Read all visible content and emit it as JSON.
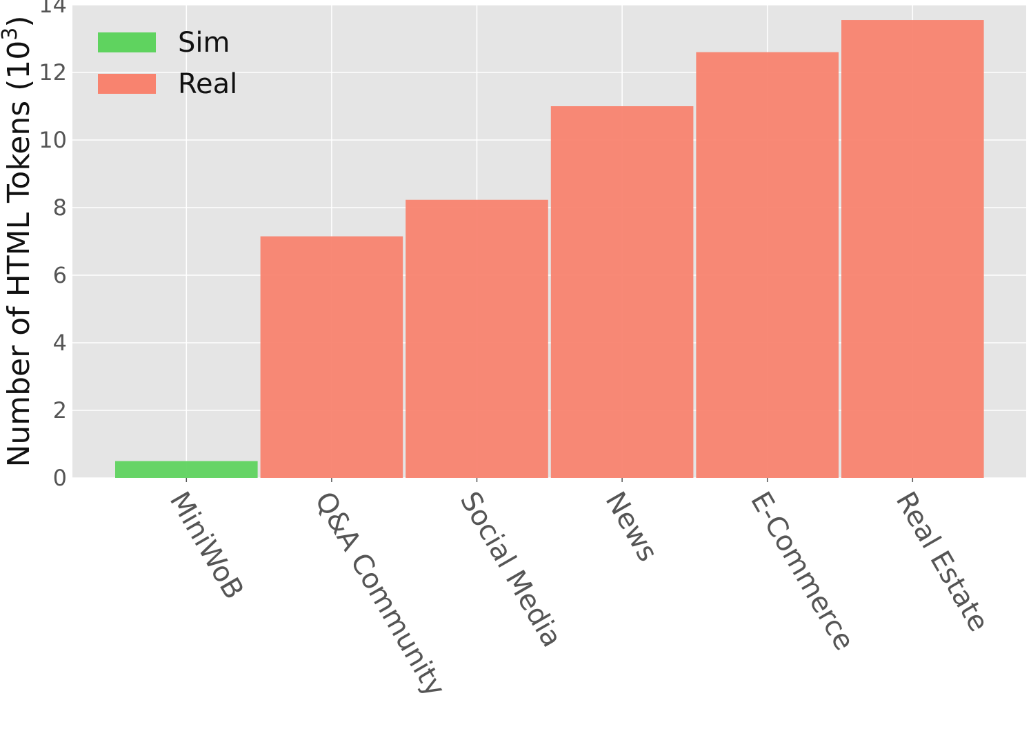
{
  "chart_data": {
    "type": "bar",
    "categories": [
      "MiniWoB",
      "Q&A Community",
      "Social Media",
      "News",
      "E-Commerce",
      "Real Estate"
    ],
    "values": [
      0.5,
      7.15,
      8.23,
      11.0,
      12.6,
      13.55
    ],
    "groups": [
      "Sim",
      "Real",
      "Real",
      "Real",
      "Real",
      "Real"
    ],
    "legend": [
      {
        "name": "Sim",
        "color": "#5fd35f"
      },
      {
        "name": "Real",
        "color": "#f8836f"
      }
    ],
    "title": "",
    "xlabel": "",
    "ylabel": "Number of HTML Tokens (10",
    "ylabel_superscript": "3",
    "ylabel_suffix": ")",
    "ylim": [
      0,
      14
    ],
    "yticks": [
      0,
      2,
      4,
      6,
      8,
      10,
      12,
      14
    ],
    "grid": true,
    "legend_position": "top-left",
    "background_color": "#e5e5e5",
    "grid_color": "#ffffff"
  }
}
